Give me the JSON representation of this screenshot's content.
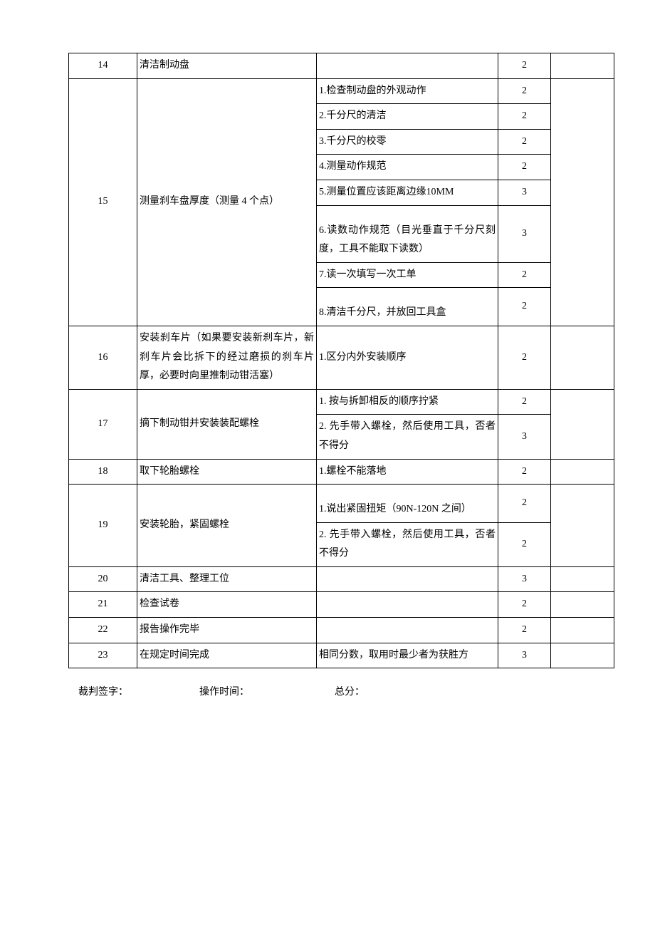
{
  "table": {
    "columns": {
      "num_width": 96,
      "step_width": 252,
      "req_width": 255,
      "score_width": 74,
      "blank_width": 82
    },
    "rows": [
      {
        "num": "14",
        "step": "清洁制动盘",
        "reqs": [
          {
            "text": "",
            "score": "2"
          }
        ]
      },
      {
        "num": "15",
        "step": "测量刹车盘厚度（测量 4 个点）",
        "reqs": [
          {
            "text": "1.检查制动盘的外观动作",
            "score": "2"
          },
          {
            "text": "2.千分尺的清洁",
            "score": "2"
          },
          {
            "text": "3.千分尺的校零",
            "score": "2"
          },
          {
            "text": "4.测量动作规范",
            "score": "2"
          },
          {
            "text": "5.测量位置应该距离边缘10MM",
            "score": "3"
          },
          {
            "text": "6.读数动作规范（目光垂直于千分尺刻度，工具不能取下读数）",
            "score": "3",
            "pad_top": true
          },
          {
            "text": "7.读一次填写一次工单",
            "score": "2"
          },
          {
            "text": "8.清洁千分尺，并放回工具盒",
            "score": "2",
            "pad_top": true
          }
        ]
      },
      {
        "num": "16",
        "step": "安装刹车片（如果要安装新刹车片，新刹车片会比拆下的经过磨损的刹车片厚，必要时向里推制动钳活塞）",
        "reqs": [
          {
            "text": "1.区分内外安装顺序",
            "score": "2"
          }
        ]
      },
      {
        "num": "17",
        "step": "摘下制动钳并安装装配螺栓",
        "reqs": [
          {
            "text": "1. 按与拆卸相反的顺序拧紧",
            "score": "2"
          },
          {
            "text": "2. 先手带入螺栓，然后使用工具，否者不得分",
            "score": "3"
          }
        ]
      },
      {
        "num": "18",
        "step": "取下轮胎螺栓",
        "reqs": [
          {
            "text": "1.螺栓不能落地",
            "score": "2"
          }
        ]
      },
      {
        "num": "19",
        "step": "安装轮胎，紧固螺栓",
        "reqs": [
          {
            "text": "1.说出紧固扭矩（90N-120N 之间）",
            "score": "2",
            "pad_top": true
          },
          {
            "text": "2. 先手带入螺栓，然后使用工具，否者不得分",
            "score": "2"
          }
        ]
      },
      {
        "num": "20",
        "step": "清洁工具、整理工位",
        "reqs": [
          {
            "text": "",
            "score": "3"
          }
        ]
      },
      {
        "num": "21",
        "step": "检查试卷",
        "reqs": [
          {
            "text": "",
            "score": "2"
          }
        ]
      },
      {
        "num": "22",
        "step": "报告操作完毕",
        "reqs": [
          {
            "text": "",
            "score": "2"
          }
        ]
      },
      {
        "num": "23",
        "step": "在规定时间完成",
        "reqs": [
          {
            "text": "相同分数，取用时最少者为获胜方",
            "score": "3"
          }
        ]
      }
    ]
  },
  "footer": {
    "judge_label": "裁判签字：",
    "time_label": "操作时间：",
    "total_label": "总分："
  }
}
